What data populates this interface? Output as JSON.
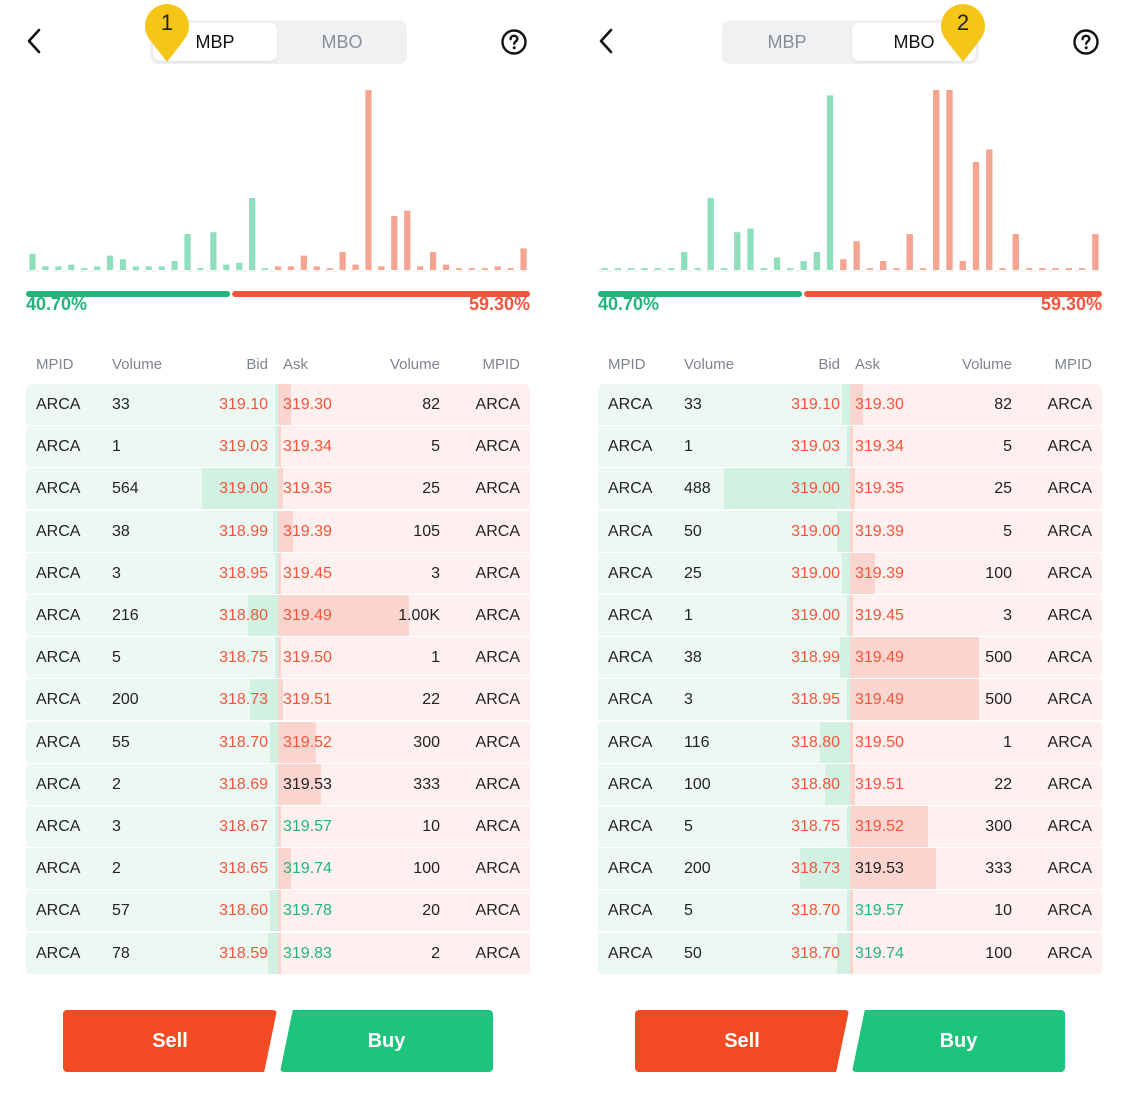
{
  "colors": {
    "bid": "#22b57a",
    "ask": "#f2553b",
    "bid_bar": "#8fdfbd",
    "ask_bar": "#f4a491",
    "sell": "#f24a23",
    "buy": "#1ec47c",
    "marker": "#f5c518"
  },
  "icons": {
    "back": "chevron-left-icon",
    "help": "question-circle-icon",
    "marker": "map-pin-icon"
  },
  "panels": [
    {
      "marker_number": "1",
      "active_tab": "MBP",
      "tabs": [
        "MBP",
        "MBO"
      ],
      "bid_pct": "40.70%",
      "ask_pct": "59.30%",
      "bid_ratio": 0.407,
      "headers": {
        "mpid_bid": "MPID",
        "volume_bid": "Volume",
        "bid": "Bid",
        "ask": "Ask",
        "volume_ask": "Volume",
        "mpid_ask": "MPID"
      },
      "depth_bid": [
        9,
        2,
        2,
        3,
        1,
        2,
        8,
        6,
        2,
        2,
        2,
        5,
        20,
        1,
        21,
        3,
        4,
        40,
        1
      ],
      "depth_ask": [
        2,
        2,
        8,
        2,
        1,
        10,
        3,
        100,
        2,
        30,
        33,
        2,
        10,
        3,
        1,
        1,
        1,
        2,
        1,
        12
      ],
      "rows": [
        {
          "mpid": "ARCA",
          "bid_vol": "33",
          "bid": "319.10",
          "ask": "319.30",
          "ask_color": "red",
          "ask_vol": "82",
          "ask_mpid": "ARCA",
          "bid_fill": 0.01,
          "ask_fill": 0.05
        },
        {
          "mpid": "ARCA",
          "bid_vol": "1",
          "bid": "319.03",
          "ask": "319.34",
          "ask_color": "red",
          "ask_vol": "5",
          "ask_mpid": "ARCA",
          "bid_fill": 0.0,
          "ask_fill": 0.01
        },
        {
          "mpid": "ARCA",
          "bid_vol": "564",
          "bid": "319.00",
          "ask": "319.35",
          "ask_color": "red",
          "ask_vol": "25",
          "ask_mpid": "ARCA",
          "bid_fill": 0.3,
          "ask_fill": 0.02
        },
        {
          "mpid": "ARCA",
          "bid_vol": "38",
          "bid": "318.99",
          "ask": "319.39",
          "ask_color": "red",
          "ask_vol": "105",
          "ask_mpid": "ARCA",
          "bid_fill": 0.02,
          "ask_fill": 0.06
        },
        {
          "mpid": "ARCA",
          "bid_vol": "3",
          "bid": "318.95",
          "ask": "319.45",
          "ask_color": "red",
          "ask_vol": "3",
          "ask_mpid": "ARCA",
          "bid_fill": 0.01,
          "ask_fill": 0.01
        },
        {
          "mpid": "ARCA",
          "bid_vol": "216",
          "bid": "318.80",
          "ask": "319.49",
          "ask_color": "red",
          "ask_vol": "1.00K",
          "ask_mpid": "ARCA",
          "bid_fill": 0.12,
          "ask_fill": 0.52
        },
        {
          "mpid": "ARCA",
          "bid_vol": "5",
          "bid": "318.75",
          "ask": "319.50",
          "ask_color": "red",
          "ask_vol": "1",
          "ask_mpid": "ARCA",
          "bid_fill": 0.01,
          "ask_fill": 0.0
        },
        {
          "mpid": "ARCA",
          "bid_vol": "200",
          "bid": "318.73",
          "ask": "319.51",
          "ask_color": "red",
          "ask_vol": "22",
          "ask_mpid": "ARCA",
          "bid_fill": 0.11,
          "ask_fill": 0.02
        },
        {
          "mpid": "ARCA",
          "bid_vol": "55",
          "bid": "318.70",
          "ask": "319.52",
          "ask_color": "red",
          "ask_vol": "300",
          "ask_mpid": "ARCA",
          "bid_fill": 0.03,
          "ask_fill": 0.15
        },
        {
          "mpid": "ARCA",
          "bid_vol": "2",
          "bid": "318.69",
          "ask": "319.53",
          "ask_color": "dark",
          "ask_vol": "333",
          "ask_mpid": "ARCA",
          "bid_fill": 0.0,
          "ask_fill": 0.17
        },
        {
          "mpid": "ARCA",
          "bid_vol": "3",
          "bid": "318.67",
          "ask": "319.57",
          "ask_color": "green",
          "ask_vol": "10",
          "ask_mpid": "ARCA",
          "bid_fill": 0.01,
          "ask_fill": 0.01
        },
        {
          "mpid": "ARCA",
          "bid_vol": "2",
          "bid": "318.65",
          "ask": "319.74",
          "ask_color": "green",
          "ask_vol": "100",
          "ask_mpid": "ARCA",
          "bid_fill": 0.0,
          "ask_fill": 0.05
        },
        {
          "mpid": "ARCA",
          "bid_vol": "57",
          "bid": "318.60",
          "ask": "319.78",
          "ask_color": "green",
          "ask_vol": "20",
          "ask_mpid": "ARCA",
          "bid_fill": 0.03,
          "ask_fill": 0.01
        },
        {
          "mpid": "ARCA",
          "bid_vol": "78",
          "bid": "318.59",
          "ask": "319.83",
          "ask_color": "green",
          "ask_vol": "2",
          "ask_mpid": "ARCA",
          "bid_fill": 0.04,
          "ask_fill": 0.0
        }
      ],
      "sell_label": "Sell",
      "buy_label": "Buy"
    },
    {
      "marker_number": "2",
      "active_tab": "MBO",
      "tabs": [
        "MBP",
        "MBO"
      ],
      "bid_pct": "40.70%",
      "ask_pct": "59.30%",
      "bid_ratio": 0.407,
      "headers": {
        "mpid_bid": "MPID",
        "volume_bid": "Volume",
        "bid": "Bid",
        "ask": "Ask",
        "volume_ask": "Volume",
        "mpid_ask": "MPID"
      },
      "depth_bid": [
        1,
        1,
        1,
        1,
        1,
        1,
        10,
        1,
        40,
        1,
        21,
        23,
        1,
        7,
        1,
        5,
        10,
        97
      ],
      "depth_ask": [
        6,
        16,
        1,
        5,
        1,
        20,
        1,
        100,
        100,
        5,
        60,
        67,
        1,
        20,
        1,
        1,
        1,
        1,
        1,
        20
      ],
      "rows": [
        {
          "mpid": "ARCA",
          "bid_vol": "33",
          "bid": "319.10",
          "ask": "319.30",
          "ask_color": "red",
          "ask_vol": "82",
          "ask_mpid": "ARCA",
          "bid_fill": 0.03,
          "ask_fill": 0.05
        },
        {
          "mpid": "ARCA",
          "bid_vol": "1",
          "bid": "319.03",
          "ask": "319.34",
          "ask_color": "red",
          "ask_vol": "5",
          "ask_mpid": "ARCA",
          "bid_fill": 0.0,
          "ask_fill": 0.0
        },
        {
          "mpid": "ARCA",
          "bid_vol": "488",
          "bid": "319.00",
          "ask": "319.35",
          "ask_color": "red",
          "ask_vol": "25",
          "ask_mpid": "ARCA",
          "bid_fill": 0.5,
          "ask_fill": 0.02
        },
        {
          "mpid": "ARCA",
          "bid_vol": "50",
          "bid": "319.00",
          "ask": "319.39",
          "ask_color": "red",
          "ask_vol": "5",
          "ask_mpid": "ARCA",
          "bid_fill": 0.05,
          "ask_fill": 0.0
        },
        {
          "mpid": "ARCA",
          "bid_vol": "25",
          "bid": "319.00",
          "ask": "319.39",
          "ask_color": "red",
          "ask_vol": "100",
          "ask_mpid": "ARCA",
          "bid_fill": 0.03,
          "ask_fill": 0.1
        },
        {
          "mpid": "ARCA",
          "bid_vol": "1",
          "bid": "319.00",
          "ask": "319.45",
          "ask_color": "red",
          "ask_vol": "3",
          "ask_mpid": "ARCA",
          "bid_fill": 0.0,
          "ask_fill": 0.0
        },
        {
          "mpid": "ARCA",
          "bid_vol": "38",
          "bid": "318.99",
          "ask": "319.49",
          "ask_color": "red",
          "ask_vol": "500",
          "ask_mpid": "ARCA",
          "bid_fill": 0.04,
          "ask_fill": 0.51
        },
        {
          "mpid": "ARCA",
          "bid_vol": "3",
          "bid": "318.95",
          "ask": "319.49",
          "ask_color": "red",
          "ask_vol": "500",
          "ask_mpid": "ARCA",
          "bid_fill": 0.0,
          "ask_fill": 0.51
        },
        {
          "mpid": "ARCA",
          "bid_vol": "116",
          "bid": "318.80",
          "ask": "319.50",
          "ask_color": "red",
          "ask_vol": "1",
          "ask_mpid": "ARCA",
          "bid_fill": 0.12,
          "ask_fill": 0.0
        },
        {
          "mpid": "ARCA",
          "bid_vol": "100",
          "bid": "318.80",
          "ask": "319.51",
          "ask_color": "red",
          "ask_vol": "22",
          "ask_mpid": "ARCA",
          "bid_fill": 0.1,
          "ask_fill": 0.02
        },
        {
          "mpid": "ARCA",
          "bid_vol": "5",
          "bid": "318.75",
          "ask": "319.52",
          "ask_color": "red",
          "ask_vol": "300",
          "ask_mpid": "ARCA",
          "bid_fill": 0.0,
          "ask_fill": 0.31
        },
        {
          "mpid": "ARCA",
          "bid_vol": "200",
          "bid": "318.73",
          "ask": "319.53",
          "ask_color": "dark",
          "ask_vol": "333",
          "ask_mpid": "ARCA",
          "bid_fill": 0.2,
          "ask_fill": 0.34
        },
        {
          "mpid": "ARCA",
          "bid_vol": "5",
          "bid": "318.70",
          "ask": "319.57",
          "ask_color": "green",
          "ask_vol": "10",
          "ask_mpid": "ARCA",
          "bid_fill": 0.0,
          "ask_fill": 0.01
        },
        {
          "mpid": "ARCA",
          "bid_vol": "50",
          "bid": "318.70",
          "ask": "319.74",
          "ask_color": "green",
          "ask_vol": "100",
          "ask_mpid": "ARCA",
          "bid_fill": 0.05,
          "ask_fill": 0.01
        }
      ],
      "sell_label": "Sell",
      "buy_label": "Buy"
    }
  ]
}
